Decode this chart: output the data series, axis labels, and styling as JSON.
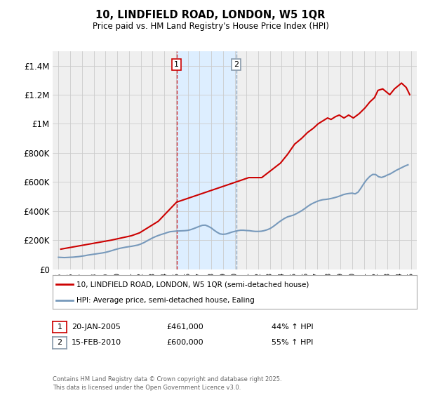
{
  "title": "10, LINDFIELD ROAD, LONDON, W5 1QR",
  "subtitle": "Price paid vs. HM Land Registry's House Price Index (HPI)",
  "legend_line1": "10, LINDFIELD ROAD, LONDON, W5 1QR (semi-detached house)",
  "legend_line2": "HPI: Average price, semi-detached house, Ealing",
  "footnote": "Contains HM Land Registry data © Crown copyright and database right 2025.\nThis data is licensed under the Open Government Licence v3.0.",
  "annotation1": {
    "label": "1",
    "date": "20-JAN-2005",
    "price": "£461,000",
    "hpi": "44% ↑ HPI",
    "x": 2005.05
  },
  "annotation2": {
    "label": "2",
    "date": "15-FEB-2010",
    "price": "£600,000",
    "hpi": "55% ↑ HPI",
    "x": 2010.12
  },
  "ylim": [
    0,
    1500000
  ],
  "xlim": [
    1994.5,
    2025.5
  ],
  "background_color": "#ffffff",
  "plot_bg_color": "#efefef",
  "red_color": "#cc0000",
  "blue_color": "#7799bb",
  "shade_color": "#ddeeff",
  "grid_color": "#cccccc",
  "yticks": [
    0,
    200000,
    400000,
    600000,
    800000,
    1000000,
    1200000,
    1400000
  ],
  "ytick_labels": [
    "£0",
    "£200K",
    "£400K",
    "£600K",
    "£800K",
    "£1M",
    "£1.2M",
    "£1.4M"
  ],
  "xticks": [
    1995,
    1996,
    1997,
    1998,
    1999,
    2000,
    2001,
    2002,
    2003,
    2004,
    2005,
    2006,
    2007,
    2008,
    2009,
    2010,
    2011,
    2012,
    2013,
    2014,
    2015,
    2016,
    2017,
    2018,
    2019,
    2020,
    2021,
    2022,
    2023,
    2024,
    2025
  ],
  "hpi_data": {
    "years": [
      1995,
      1995.25,
      1995.5,
      1995.75,
      1996,
      1996.25,
      1996.5,
      1996.75,
      1997,
      1997.25,
      1997.5,
      1997.75,
      1998,
      1998.25,
      1998.5,
      1998.75,
      1999,
      1999.25,
      1999.5,
      1999.75,
      2000,
      2000.25,
      2000.5,
      2000.75,
      2001,
      2001.25,
      2001.5,
      2001.75,
      2002,
      2002.25,
      2002.5,
      2002.75,
      2003,
      2003.25,
      2003.5,
      2003.75,
      2004,
      2004.25,
      2004.5,
      2004.75,
      2005,
      2005.25,
      2005.5,
      2005.75,
      2006,
      2006.25,
      2006.5,
      2006.75,
      2007,
      2007.25,
      2007.5,
      2007.75,
      2008,
      2008.25,
      2008.5,
      2008.75,
      2009,
      2009.25,
      2009.5,
      2009.75,
      2010,
      2010.25,
      2010.5,
      2010.75,
      2011,
      2011.25,
      2011.5,
      2011.75,
      2012,
      2012.25,
      2012.5,
      2012.75,
      2013,
      2013.25,
      2013.5,
      2013.75,
      2014,
      2014.25,
      2014.5,
      2014.75,
      2015,
      2015.25,
      2015.5,
      2015.75,
      2016,
      2016.25,
      2016.5,
      2016.75,
      2017,
      2017.25,
      2017.5,
      2017.75,
      2018,
      2018.25,
      2018.5,
      2018.75,
      2019,
      2019.25,
      2019.5,
      2019.75,
      2020,
      2020.25,
      2020.5,
      2020.75,
      2021,
      2021.25,
      2021.5,
      2021.75,
      2022,
      2022.25,
      2022.5,
      2022.75,
      2023,
      2023.25,
      2023.5,
      2023.75,
      2024,
      2024.25,
      2024.5,
      2024.75
    ],
    "values": [
      82000,
      81000,
      80000,
      81000,
      82000,
      83000,
      85000,
      87000,
      90000,
      93000,
      97000,
      100000,
      103000,
      106000,
      109000,
      112000,
      116000,
      121000,
      127000,
      133000,
      139000,
      144000,
      148000,
      152000,
      155000,
      158000,
      162000,
      166000,
      173000,
      182000,
      193000,
      204000,
      215000,
      224000,
      232000,
      239000,
      245000,
      252000,
      258000,
      260000,
      262000,
      263000,
      264000,
      265000,
      267000,
      272000,
      279000,
      287000,
      295000,
      302000,
      303000,
      295000,
      284000,
      268000,
      254000,
      243000,
      240000,
      242000,
      248000,
      255000,
      260000,
      265000,
      268000,
      268000,
      266000,
      265000,
      262000,
      260000,
      260000,
      261000,
      265000,
      271000,
      279000,
      292000,
      307000,
      323000,
      337000,
      350000,
      360000,
      366000,
      372000,
      382000,
      393000,
      405000,
      419000,
      434000,
      447000,
      457000,
      466000,
      473000,
      478000,
      480000,
      483000,
      487000,
      492000,
      498000,
      505000,
      513000,
      518000,
      521000,
      523000,
      518000,
      530000,
      558000,
      590000,
      617000,
      638000,
      652000,
      651000,
      636000,
      631000,
      638000,
      648000,
      656000,
      668000,
      680000,
      690000,
      700000,
      710000,
      718000
    ]
  },
  "property_data": {
    "years": [
      1995.2,
      1999.5,
      2001.2,
      2001.9,
      2003.5,
      2005.05,
      2010.12,
      2011.2,
      2012.3,
      2013.1,
      2013.9,
      2014.5,
      2015.1,
      2015.7,
      2016.2,
      2016.7,
      2017.1,
      2017.5,
      2017.9,
      2018.2,
      2018.6,
      2018.9,
      2019.3,
      2019.7,
      2020.1,
      2020.6,
      2021.1,
      2021.5,
      2021.9,
      2022.2,
      2022.6,
      2022.9,
      2023.2,
      2023.6,
      2023.9,
      2024.2,
      2024.6,
      2024.9
    ],
    "values": [
      138000,
      200000,
      230000,
      250000,
      330000,
      461000,
      600000,
      630000,
      630000,
      680000,
      730000,
      790000,
      860000,
      900000,
      940000,
      970000,
      1000000,
      1020000,
      1040000,
      1030000,
      1050000,
      1060000,
      1040000,
      1060000,
      1040000,
      1070000,
      1110000,
      1150000,
      1180000,
      1230000,
      1240000,
      1220000,
      1200000,
      1240000,
      1260000,
      1280000,
      1250000,
      1200000
    ]
  }
}
